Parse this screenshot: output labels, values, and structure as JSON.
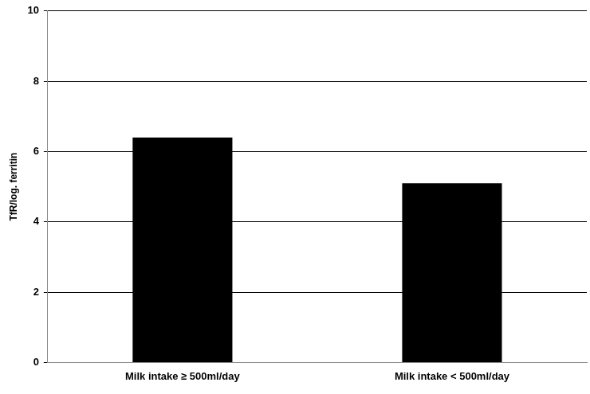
{
  "chart_data": {
    "type": "bar",
    "y_label": "TfR/log. ferritin",
    "categories": [
      "Milk intake ≥ 500ml/day",
      "Milk intake < 500ml/day"
    ],
    "values": [
      6.4,
      5.1
    ],
    "color": "#000000",
    "ylim": [
      0,
      10
    ],
    "yticks": [
      0,
      2,
      4,
      6,
      8,
      10
    ],
    "grid": true
  }
}
